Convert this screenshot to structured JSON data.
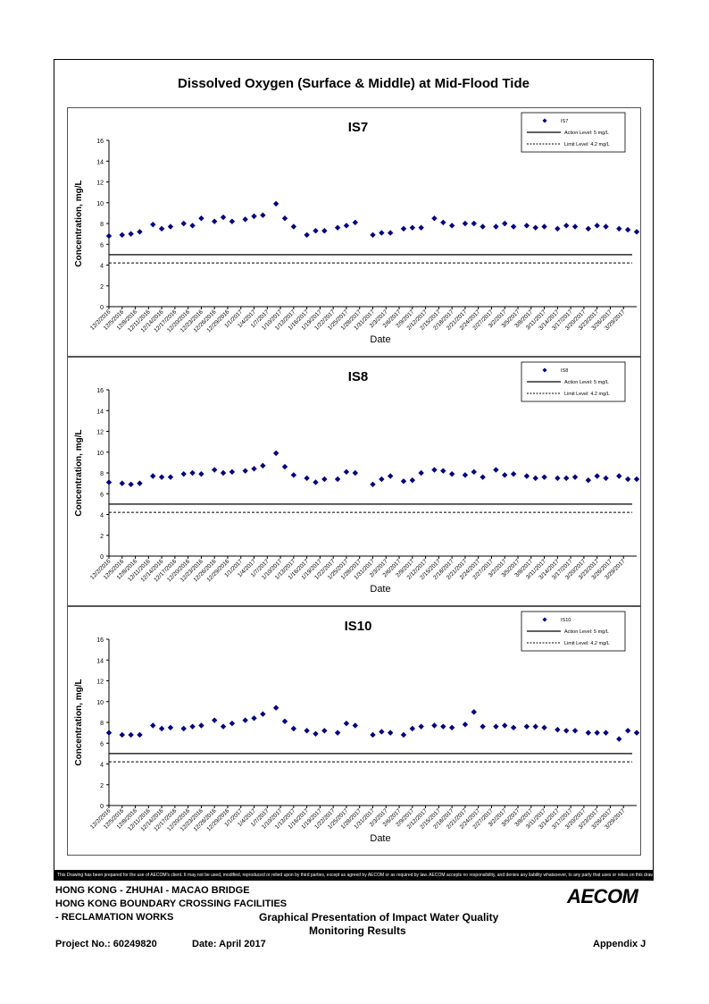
{
  "page_title": "Dissolved Oxygen (Surface & Middle) at Mid-Flood Tide",
  "disclaimer": "This Drawing has been prepared for the use of AECOM's client. It may not be used, modified, reproduced or relied upon by third parties, except as agreed by AECOM or as required by law. AECOM accepts no responsibility, and denies any liability whatsoever, to any party that uses or relies on this drawing without AECOM's express written consent.",
  "footer": {
    "project_line1": "HONG KONG - ZHUHAI - MACAO BRIDGE",
    "project_line2": "HONG KONG BOUNDARY CROSSING FACILITIES",
    "project_line3": "- RECLAMATION WORKS",
    "title_line1": "Graphical Presentation of Impact Water Quality",
    "title_line2": "Monitoring Results",
    "project_no": "Project No.: 60249820",
    "date": "Date: April 2017",
    "appendix": "Appendix J",
    "logo": "AECOM"
  },
  "chart_data": [
    {
      "type": "scatter",
      "title": "IS7",
      "xlabel": "Date",
      "ylabel": "Concentration, mg/L",
      "ylim": [
        0,
        16
      ],
      "yticks": [
        0,
        2,
        4,
        6,
        8,
        10,
        12,
        14,
        16
      ],
      "legend_placement": "top-right",
      "x_ticks": [
        "12/2/2016",
        "12/5/2016",
        "12/8/2016",
        "12/11/2016",
        "12/14/2016",
        "12/17/2016",
        "12/20/2016",
        "12/23/2016",
        "12/26/2016",
        "12/29/2016",
        "1/1/2017",
        "1/4/2017",
        "1/7/2017",
        "1/10/2017",
        "1/13/2017",
        "1/16/2017",
        "1/19/2017",
        "1/22/2017",
        "1/25/2017",
        "1/28/2017",
        "1/31/2017",
        "2/3/2017",
        "2/6/2017",
        "2/9/2017",
        "2/12/2017",
        "2/15/2017",
        "2/18/2017",
        "2/21/2017",
        "2/24/2017",
        "2/27/2017",
        "3/2/2017",
        "3/5/2017",
        "3/8/2017",
        "3/11/2017",
        "3/14/2017",
        "3/17/2017",
        "3/20/2017",
        "3/23/2017",
        "3/26/2017",
        "3/29/2017"
      ],
      "series": [
        {
          "name": "IS7",
          "marker": "diamond",
          "color": "#000080",
          "x": [
            "12/2/2016",
            "12/5/2016",
            "12/7/2016",
            "12/9/2016",
            "12/12/2016",
            "12/14/2016",
            "12/16/2016",
            "12/19/2016",
            "12/21/2016",
            "12/23/2016",
            "12/26/2016",
            "12/28/2016",
            "12/30/2016",
            "1/2/2017",
            "1/4/2017",
            "1/6/2017",
            "1/9/2017",
            "1/11/2017",
            "1/13/2017",
            "1/16/2017",
            "1/18/2017",
            "1/20/2017",
            "1/23/2017",
            "1/25/2017",
            "1/27/2017",
            "1/31/2017",
            "2/2/2017",
            "2/4/2017",
            "2/7/2017",
            "2/9/2017",
            "2/11/2017",
            "2/14/2017",
            "2/16/2017",
            "2/18/2017",
            "2/21/2017",
            "2/23/2017",
            "2/25/2017",
            "2/28/2017",
            "3/2/2017",
            "3/4/2017",
            "3/7/2017",
            "3/9/2017",
            "3/11/2017",
            "3/14/2017",
            "3/16/2017",
            "3/18/2017",
            "3/21/2017",
            "3/23/2017",
            "3/25/2017",
            "3/28/2017",
            "3/30/2017",
            "4/1/2017"
          ],
          "y": [
            6.8,
            6.9,
            7.0,
            7.2,
            7.9,
            7.5,
            7.7,
            8.0,
            7.8,
            8.5,
            8.2,
            8.6,
            8.2,
            8.4,
            8.7,
            8.8,
            9.9,
            8.5,
            7.7,
            6.9,
            7.3,
            7.3,
            7.6,
            7.8,
            8.1,
            6.9,
            7.1,
            7.1,
            7.5,
            7.6,
            7.6,
            8.5,
            8.1,
            7.8,
            8.0,
            8.0,
            7.7,
            7.7,
            8.0,
            7.7,
            7.8,
            7.6,
            7.7,
            7.5,
            7.8,
            7.7,
            7.5,
            7.8,
            7.7,
            7.5,
            7.4,
            7.2
          ]
        },
        {
          "name": "Action Level: 5 mg/L",
          "style": "solid",
          "value": 5
        },
        {
          "name": "Limit Level: 4.2 mg/L",
          "style": "dashed",
          "value": 4.2
        }
      ]
    },
    {
      "type": "scatter",
      "title": "IS8",
      "xlabel": "Date",
      "ylabel": "Concentration, mg/L",
      "ylim": [
        0,
        16
      ],
      "yticks": [
        0,
        2,
        4,
        6,
        8,
        10,
        12,
        14,
        16
      ],
      "legend_placement": "top-right",
      "x_ticks": [
        "12/2/2016",
        "12/5/2016",
        "12/8/2016",
        "12/11/2016",
        "12/14/2016",
        "12/17/2016",
        "12/20/2016",
        "12/23/2016",
        "12/26/2016",
        "12/29/2016",
        "1/1/2017",
        "1/4/2017",
        "1/7/2017",
        "1/10/2017",
        "1/13/2017",
        "1/16/2017",
        "1/19/2017",
        "1/22/2017",
        "1/25/2017",
        "1/28/2017",
        "1/31/2017",
        "2/3/2017",
        "2/6/2017",
        "2/9/2017",
        "2/12/2017",
        "2/15/2017",
        "2/18/2017",
        "2/21/2017",
        "2/24/2017",
        "2/27/2017",
        "3/2/2017",
        "3/5/2017",
        "3/8/2017",
        "3/11/2017",
        "3/14/2017",
        "3/17/2017",
        "3/20/2017",
        "3/23/2017",
        "3/26/2017",
        "3/29/2017"
      ],
      "series": [
        {
          "name": "IS8",
          "marker": "diamond",
          "color": "#000080",
          "x": [
            "12/2/2016",
            "12/5/2016",
            "12/7/2016",
            "12/9/2016",
            "12/12/2016",
            "12/14/2016",
            "12/16/2016",
            "12/19/2016",
            "12/21/2016",
            "12/23/2016",
            "12/26/2016",
            "12/28/2016",
            "12/30/2016",
            "1/2/2017",
            "1/4/2017",
            "1/6/2017",
            "1/9/2017",
            "1/11/2017",
            "1/13/2017",
            "1/16/2017",
            "1/18/2017",
            "1/20/2017",
            "1/23/2017",
            "1/25/2017",
            "1/27/2017",
            "1/31/2017",
            "2/2/2017",
            "2/4/2017",
            "2/7/2017",
            "2/9/2017",
            "2/11/2017",
            "2/14/2017",
            "2/16/2017",
            "2/18/2017",
            "2/21/2017",
            "2/23/2017",
            "2/25/2017",
            "2/28/2017",
            "3/2/2017",
            "3/4/2017",
            "3/7/2017",
            "3/9/2017",
            "3/11/2017",
            "3/14/2017",
            "3/16/2017",
            "3/18/2017",
            "3/21/2017",
            "3/23/2017",
            "3/25/2017",
            "3/28/2017",
            "3/30/2017",
            "4/1/2017"
          ],
          "y": [
            7.1,
            7.0,
            6.9,
            7.0,
            7.7,
            7.6,
            7.6,
            7.9,
            8.0,
            7.9,
            8.3,
            8.0,
            8.1,
            8.2,
            8.4,
            8.7,
            9.9,
            8.6,
            7.8,
            7.5,
            7.1,
            7.4,
            7.4,
            8.1,
            8.0,
            6.9,
            7.4,
            7.7,
            7.2,
            7.3,
            8.0,
            8.3,
            8.2,
            7.9,
            7.8,
            8.1,
            7.6,
            8.3,
            7.8,
            7.9,
            7.7,
            7.5,
            7.6,
            7.5,
            7.5,
            7.6,
            7.3,
            7.7,
            7.5,
            7.7,
            7.4,
            7.4
          ]
        },
        {
          "name": "Action Level: 5 mg/L",
          "style": "solid",
          "value": 5
        },
        {
          "name": "Limit Level: 4.2 mg/L",
          "style": "dashed",
          "value": 4.2
        }
      ]
    },
    {
      "type": "scatter",
      "title": "IS10",
      "xlabel": "Date",
      "ylabel": "Concentration, mg/L",
      "ylim": [
        0,
        16
      ],
      "yticks": [
        0,
        2,
        4,
        6,
        8,
        10,
        12,
        14,
        16
      ],
      "legend_placement": "top-right",
      "x_ticks": [
        "12/2/2016",
        "12/5/2016",
        "12/8/2016",
        "12/11/2016",
        "12/14/2016",
        "12/17/2016",
        "12/20/2016",
        "12/23/2016",
        "12/26/2016",
        "12/29/2016",
        "1/1/2017",
        "1/4/2017",
        "1/7/2017",
        "1/10/2017",
        "1/13/2017",
        "1/16/2017",
        "1/19/2017",
        "1/22/2017",
        "1/25/2017",
        "1/28/2017",
        "1/31/2017",
        "2/3/2017",
        "2/6/2017",
        "2/9/2017",
        "2/12/2017",
        "2/15/2017",
        "2/18/2017",
        "2/21/2017",
        "2/24/2017",
        "2/27/2017",
        "3/2/2017",
        "3/5/2017",
        "3/8/2017",
        "3/11/2017",
        "3/14/2017",
        "3/17/2017",
        "3/20/2017",
        "3/23/2017",
        "3/26/2017",
        "3/29/2017"
      ],
      "series": [
        {
          "name": "IS10",
          "marker": "diamond",
          "color": "#000080",
          "x": [
            "12/2/2016",
            "12/5/2016",
            "12/7/2016",
            "12/9/2016",
            "12/12/2016",
            "12/14/2016",
            "12/16/2016",
            "12/19/2016",
            "12/21/2016",
            "12/23/2016",
            "12/26/2016",
            "12/28/2016",
            "12/30/2016",
            "1/2/2017",
            "1/4/2017",
            "1/6/2017",
            "1/9/2017",
            "1/11/2017",
            "1/13/2017",
            "1/16/2017",
            "1/18/2017",
            "1/20/2017",
            "1/23/2017",
            "1/25/2017",
            "1/27/2017",
            "1/31/2017",
            "2/2/2017",
            "2/4/2017",
            "2/7/2017",
            "2/9/2017",
            "2/11/2017",
            "2/14/2017",
            "2/16/2017",
            "2/18/2017",
            "2/21/2017",
            "2/23/2017",
            "2/25/2017",
            "2/28/2017",
            "3/2/2017",
            "3/4/2017",
            "3/7/2017",
            "3/9/2017",
            "3/11/2017",
            "3/14/2017",
            "3/16/2017",
            "3/18/2017",
            "3/21/2017",
            "3/23/2017",
            "3/25/2017",
            "3/28/2017",
            "3/30/2017",
            "4/1/2017"
          ],
          "y": [
            7.0,
            6.8,
            6.8,
            6.8,
            7.7,
            7.4,
            7.5,
            7.4,
            7.6,
            7.7,
            8.2,
            7.6,
            7.9,
            8.2,
            8.4,
            8.8,
            9.4,
            8.1,
            7.4,
            7.2,
            6.9,
            7.2,
            7.0,
            7.9,
            7.7,
            6.8,
            7.1,
            7.0,
            6.8,
            7.4,
            7.6,
            7.7,
            7.6,
            7.5,
            7.8,
            9.0,
            7.6,
            7.6,
            7.7,
            7.5,
            7.6,
            7.6,
            7.5,
            7.3,
            7.2,
            7.2,
            7.0,
            7.0,
            7.0,
            6.4,
            7.2,
            7.0
          ]
        },
        {
          "name": "Action Level: 5 mg/L",
          "style": "solid",
          "value": 5
        },
        {
          "name": "Limit Level: 4.2 mg/L",
          "style": "dashed",
          "value": 4.2
        }
      ]
    }
  ]
}
